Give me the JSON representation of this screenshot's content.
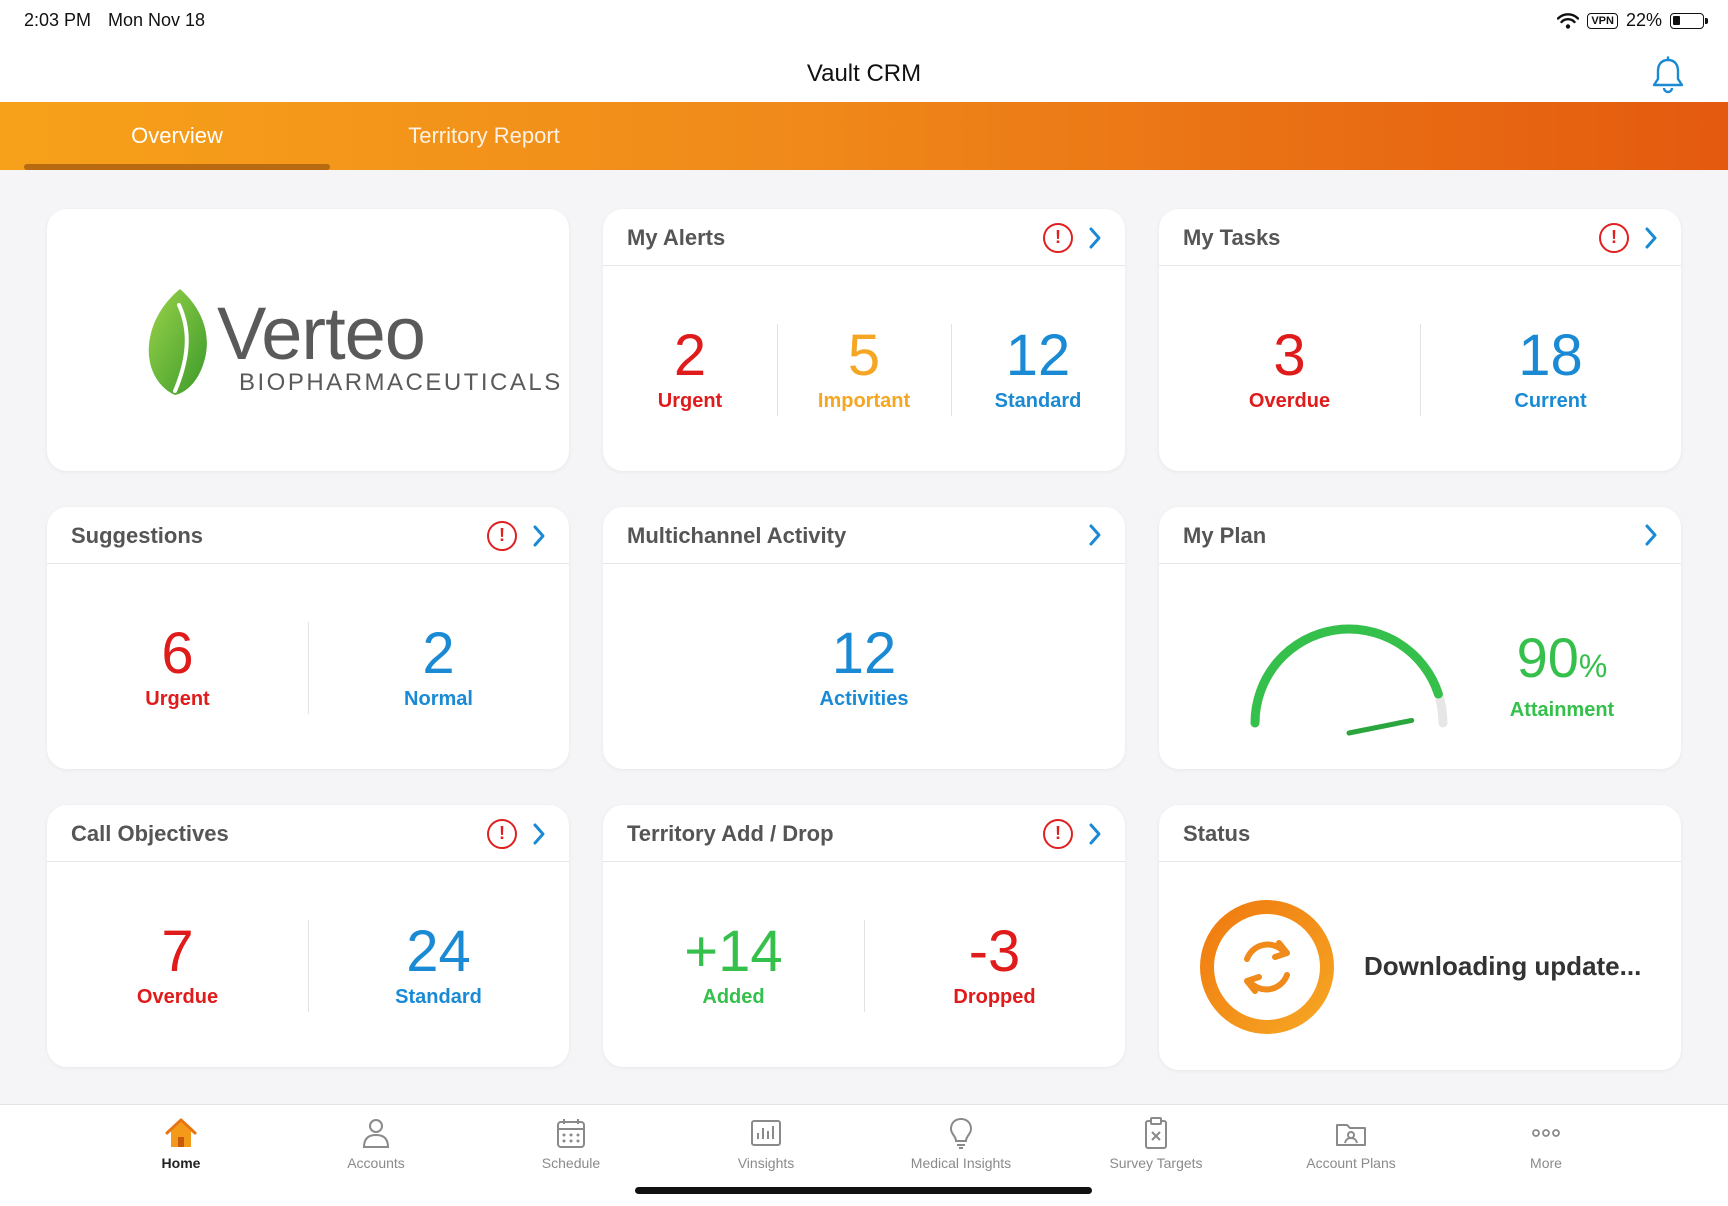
{
  "status_bar": {
    "time": "2:03 PM",
    "date": "Mon Nov 18",
    "vpn": "VPN",
    "battery": "22%"
  },
  "app_title": "Vault CRM",
  "tabs": [
    {
      "label": "Overview",
      "active": true
    },
    {
      "label": "Territory Report",
      "active": false
    }
  ],
  "logo": {
    "name": "Verteo",
    "subtitle": "BIOPHARMACEUTICALS"
  },
  "alerts": {
    "title": "My Alerts",
    "metrics": [
      {
        "value": "2",
        "label": "Urgent",
        "color": "#e01b1b"
      },
      {
        "value": "5",
        "label": "Important",
        "color": "#f5a623"
      },
      {
        "value": "12",
        "label": "Standard",
        "color": "#1a8ad4"
      }
    ]
  },
  "tasks": {
    "title": "My Tasks",
    "metrics": [
      {
        "value": "3",
        "label": "Overdue",
        "color": "#e01b1b"
      },
      {
        "value": "18",
        "label": "Current",
        "color": "#1a8ad4"
      }
    ]
  },
  "suggestions": {
    "title": "Suggestions",
    "metrics": [
      {
        "value": "6",
        "label": "Urgent",
        "color": "#e01b1b"
      },
      {
        "value": "2",
        "label": "Normal",
        "color": "#1a8ad4"
      }
    ]
  },
  "multichannel": {
    "title": "Multichannel Activity",
    "metrics": [
      {
        "value": "12",
        "label": "Activities",
        "color": "#1a8ad4"
      }
    ]
  },
  "plan": {
    "title": "My Plan",
    "value": "90",
    "unit": "%",
    "label": "Attainment",
    "attainment": 0.9
  },
  "call_objectives": {
    "title": "Call Objectives",
    "metrics": [
      {
        "value": "7",
        "label": "Overdue",
        "color": "#e01b1b"
      },
      {
        "value": "24",
        "label": "Standard",
        "color": "#1a8ad4"
      }
    ]
  },
  "territory": {
    "title": "Territory Add / Drop",
    "metrics": [
      {
        "value": "+14",
        "label": "Added",
        "color": "#34c04a"
      },
      {
        "value": "-3",
        "label": "Dropped",
        "color": "#e01b1b"
      }
    ]
  },
  "status": {
    "title": "Status",
    "message": "Downloading update..."
  },
  "bottom_tabs": [
    {
      "label": "Home",
      "icon": "home-icon",
      "active": true
    },
    {
      "label": "Accounts",
      "icon": "accounts-icon"
    },
    {
      "label": "Schedule",
      "icon": "calendar-icon"
    },
    {
      "label": "Vinsights",
      "icon": "chart-icon"
    },
    {
      "label": "Medical Insights",
      "icon": "lightbulb-icon"
    },
    {
      "label": "Survey Targets",
      "icon": "clipboard-icon"
    },
    {
      "label": "Account Plans",
      "icon": "folder-icon"
    },
    {
      "label": "More",
      "icon": "more-icon"
    }
  ]
}
